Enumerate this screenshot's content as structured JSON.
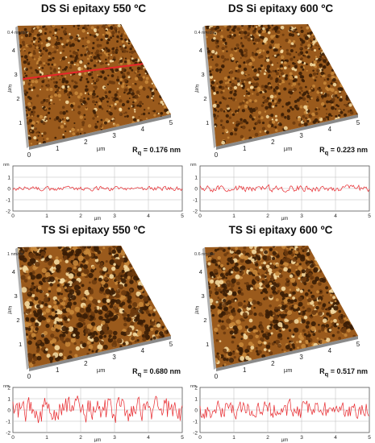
{
  "panels": [
    {
      "title": "DS Si epitaxy 550 ºC",
      "rq_label": "R",
      "rq_sub": "q",
      "rq_value": " = 0.176 nm",
      "zscale": "0.4 nm/div",
      "profile": {
        "ymin": -2,
        "ymax": 2,
        "yticks": [
          "1",
          "0",
          "-1",
          "-2"
        ],
        "amplitude": 0.15,
        "seed": 1
      },
      "scan_line": true
    },
    {
      "title": "DS Si epitaxy 600 ºC",
      "rq_label": "R",
      "rq_sub": "q",
      "rq_value": " = 0.223 nm",
      "zscale": "0.4 nm/div",
      "profile": {
        "ymin": -2,
        "ymax": 2,
        "yticks": [
          "1",
          "0",
          "-1",
          "-2"
        ],
        "amplitude": 0.22,
        "seed": 2
      },
      "scan_line": false
    },
    {
      "title": "TS Si epitaxy 550 ºC",
      "rq_label": "R",
      "rq_sub": "q",
      "rq_value": " = 0.680 nm",
      "zscale": "1 nm/div",
      "profile": {
        "ymin": -2,
        "ymax": 2,
        "yticks": [
          "2",
          "1",
          "0",
          "-1",
          "-2"
        ],
        "amplitude": 0.85,
        "seed": 3
      },
      "scan_line": false
    },
    {
      "title": "TS Si epitaxy 600 ºC",
      "rq_label": "R",
      "rq_sub": "q",
      "rq_value": " = 0.517 nm",
      "zscale": "0.6 nm/div",
      "profile": {
        "ymin": -2,
        "ymax": 2,
        "yticks": [
          "2",
          "1",
          "0",
          "-1",
          "-2"
        ],
        "amplitude": 0.62,
        "seed": 4
      },
      "scan_line": false
    }
  ],
  "axis": {
    "x_ticks": [
      "0",
      "1",
      "2",
      "3",
      "4",
      "5"
    ],
    "y_ticks": [
      "1",
      "2",
      "3",
      "4"
    ],
    "unit": "µm",
    "profile_y_unit": "nm",
    "profile_x_ticks": [
      "0",
      "1",
      "2",
      "3",
      "4",
      "5"
    ]
  },
  "colors": {
    "surface_dark": "#3a1d05",
    "surface_mid": "#9a5a1c",
    "surface_light": "#f4d9a0",
    "profile_line": "#e8262b",
    "scan_line": "#e8262b"
  }
}
